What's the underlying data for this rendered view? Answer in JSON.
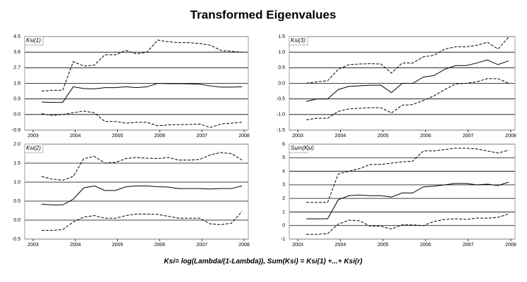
{
  "title": "Transformed Eigenvalues",
  "footnote": "Ksi= log(Lambda/(1-Lambda)), Sum(Ksi) = Ksi(1) +...+ Ksi(r)",
  "chart_data": [
    {
      "type": "line",
      "title": "Ksi(1)",
      "x": [
        2003.2,
        2003.45,
        2003.7,
        2003.95,
        2004.2,
        2004.45,
        2004.7,
        2004.95,
        2005.2,
        2005.45,
        2005.7,
        2005.95,
        2006.2,
        2006.45,
        2006.7,
        2006.95,
        2007.2,
        2007.45,
        2007.7,
        2007.95
      ],
      "xlim": [
        2002.8,
        2008.1
      ],
      "xticks": [
        2003,
        2004,
        2005,
        2006,
        2007,
        2008
      ],
      "ylim": [
        -0.9,
        4.5
      ],
      "yticks": [
        -0.9,
        {
          "value": 0,
          "label": "0.0"
        },
        0.9,
        1.8,
        2.7,
        3.6,
        4.5
      ],
      "grid": true,
      "series": [
        {
          "color": "#000000",
          "style": "dashed",
          "values": [
            1.35,
            1.4,
            1.4,
            3.05,
            2.8,
            2.85,
            3.45,
            3.45,
            3.7,
            3.5,
            3.6,
            4.3,
            4.2,
            4.15,
            4.15,
            4.1,
            4.0,
            3.7,
            3.65,
            3.6
          ]
        },
        {
          "color": "#000000",
          "style": "solid",
          "values": [
            0.72,
            0.7,
            0.7,
            1.6,
            1.5,
            1.48,
            1.55,
            1.55,
            1.6,
            1.55,
            1.6,
            1.8,
            1.78,
            1.78,
            1.77,
            1.75,
            1.65,
            1.58,
            1.58,
            1.6
          ]
        },
        {
          "color": "#000000",
          "style": "dashed",
          "values": [
            0.05,
            -0.05,
            0.0,
            0.1,
            0.2,
            0.1,
            -0.4,
            -0.4,
            -0.5,
            -0.45,
            -0.45,
            -0.65,
            -0.6,
            -0.58,
            -0.58,
            -0.55,
            -0.75,
            -0.55,
            -0.5,
            -0.45
          ]
        }
      ]
    },
    {
      "type": "line",
      "title": "Ksi(3)",
      "x": [
        2003.2,
        2003.45,
        2003.7,
        2003.95,
        2004.2,
        2004.45,
        2004.7,
        2004.95,
        2005.2,
        2005.45,
        2005.7,
        2005.95,
        2006.2,
        2006.45,
        2006.7,
        2006.95,
        2007.2,
        2007.45,
        2007.7,
        2007.95
      ],
      "xlim": [
        2002.8,
        2008.1
      ],
      "xticks": [
        2003,
        2004,
        2005,
        2006,
        2007,
        2008
      ],
      "ylim": [
        -1.5,
        1.5
      ],
      "yticks": [
        -1.5,
        {
          "value": -1,
          "label": "-1.0"
        },
        -0.5,
        {
          "value": 0,
          "label": "0.0"
        },
        0.5,
        {
          "value": 1,
          "label": "1.0"
        },
        1.5
      ],
      "grid": true,
      "series": [
        {
          "color": "#000000",
          "style": "dashed",
          "values": [
            0.0,
            0.05,
            0.08,
            0.45,
            0.6,
            0.62,
            0.63,
            0.62,
            0.33,
            0.65,
            0.65,
            0.85,
            0.9,
            1.1,
            1.17,
            1.17,
            1.22,
            1.32,
            1.1,
            1.48
          ]
        },
        {
          "color": "#000000",
          "style": "solid",
          "values": [
            -0.58,
            -0.5,
            -0.5,
            -0.2,
            -0.1,
            -0.08,
            -0.06,
            -0.06,
            -0.3,
            0.0,
            0.0,
            0.2,
            0.25,
            0.45,
            0.57,
            0.57,
            0.65,
            0.75,
            0.6,
            0.72
          ]
        },
        {
          "color": "#000000",
          "style": "dashed",
          "values": [
            -1.17,
            -1.12,
            -1.12,
            -0.9,
            -0.82,
            -0.8,
            -0.78,
            -0.78,
            -0.95,
            -0.7,
            -0.68,
            -0.55,
            -0.4,
            -0.2,
            -0.02,
            0.0,
            0.05,
            0.15,
            0.15,
            0.0
          ]
        }
      ]
    },
    {
      "type": "line",
      "title": "Ksi(2)",
      "x": [
        2003.2,
        2003.45,
        2003.7,
        2003.95,
        2004.2,
        2004.45,
        2004.7,
        2004.95,
        2005.2,
        2005.45,
        2005.7,
        2005.95,
        2006.2,
        2006.45,
        2006.7,
        2006.95,
        2007.2,
        2007.45,
        2007.7,
        2007.95
      ],
      "xlim": [
        2002.8,
        2008.1
      ],
      "xticks": [
        2003,
        2004,
        2005,
        2006,
        2007,
        2008
      ],
      "ylim": [
        -0.5,
        2.0
      ],
      "yticks": [
        -0.5,
        {
          "value": 0,
          "label": "0.0"
        },
        0.5,
        {
          "value": 1,
          "label": "1.0"
        },
        1.5,
        {
          "value": 2,
          "label": "2.0"
        }
      ],
      "grid": true,
      "series": [
        {
          "color": "#000000",
          "style": "dashed",
          "values": [
            1.15,
            1.08,
            1.05,
            1.15,
            1.62,
            1.68,
            1.5,
            1.52,
            1.62,
            1.65,
            1.63,
            1.62,
            1.65,
            1.58,
            1.58,
            1.6,
            1.72,
            1.78,
            1.75,
            1.58
          ]
        },
        {
          "color": "#000000",
          "style": "solid",
          "values": [
            0.42,
            0.4,
            0.4,
            0.55,
            0.85,
            0.9,
            0.78,
            0.78,
            0.88,
            0.9,
            0.9,
            0.88,
            0.87,
            0.83,
            0.83,
            0.83,
            0.82,
            0.83,
            0.83,
            0.9
          ]
        },
        {
          "color": "#000000",
          "style": "dashed",
          "values": [
            -0.27,
            -0.27,
            -0.25,
            -0.05,
            0.08,
            0.12,
            0.05,
            0.05,
            0.12,
            0.16,
            0.16,
            0.15,
            0.1,
            0.05,
            0.05,
            0.05,
            -0.1,
            -0.12,
            -0.08,
            0.23
          ]
        }
      ]
    },
    {
      "type": "line",
      "title": "Sum(Ksi)",
      "x": [
        2003.2,
        2003.45,
        2003.7,
        2003.95,
        2004.2,
        2004.45,
        2004.7,
        2004.95,
        2005.2,
        2005.45,
        2005.7,
        2005.95,
        2006.2,
        2006.45,
        2006.7,
        2006.95,
        2007.2,
        2007.45,
        2007.7,
        2007.95
      ],
      "xlim": [
        2002.8,
        2008.1
      ],
      "xticks": [
        2003,
        2004,
        2005,
        2006,
        2007,
        2008
      ],
      "ylim": [
        -1,
        6
      ],
      "yticks": [
        -1,
        0,
        1,
        2,
        3,
        4,
        5,
        6
      ],
      "grid": true,
      "series": [
        {
          "color": "#000000",
          "style": "dashed",
          "values": [
            1.7,
            1.7,
            1.7,
            3.8,
            4.0,
            4.2,
            4.5,
            4.5,
            4.6,
            4.7,
            4.75,
            5.5,
            5.5,
            5.6,
            5.7,
            5.7,
            5.65,
            5.5,
            5.35,
            5.55
          ]
        },
        {
          "color": "#000000",
          "style": "solid",
          "values": [
            0.5,
            0.5,
            0.5,
            1.9,
            2.2,
            2.25,
            2.2,
            2.2,
            2.1,
            2.4,
            2.4,
            2.85,
            2.9,
            3.0,
            3.1,
            3.1,
            3.0,
            3.05,
            2.95,
            3.2
          ]
        },
        {
          "color": "#000000",
          "style": "dashed",
          "values": [
            -0.65,
            -0.65,
            -0.6,
            0.1,
            0.4,
            0.35,
            -0.05,
            -0.05,
            -0.25,
            0.05,
            0.05,
            0.0,
            0.3,
            0.45,
            0.5,
            0.45,
            0.55,
            0.55,
            0.6,
            0.85
          ]
        }
      ]
    }
  ]
}
